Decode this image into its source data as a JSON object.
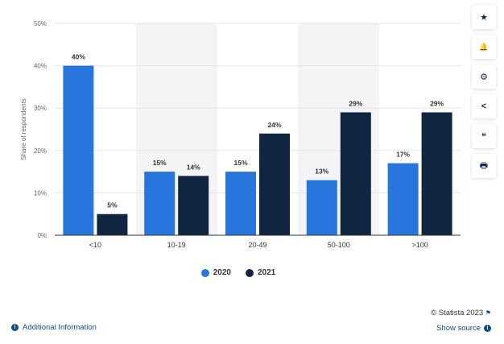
{
  "chart_data": {
    "type": "bar",
    "categories": [
      "<10",
      "10-19",
      "20-49",
      "50-100",
      ">100"
    ],
    "series": [
      {
        "name": "2020",
        "values": [
          40,
          15,
          15,
          13,
          17
        ],
        "color": "#2876dd"
      },
      {
        "name": "2021",
        "values": [
          5,
          14,
          24,
          29,
          29
        ],
        "color": "#10253f"
      }
    ],
    "ylabel": "Share of respondents",
    "yticks": [
      "0%",
      "10%",
      "20%",
      "30%",
      "40%",
      "50%"
    ],
    "ylim": [
      0,
      50
    ],
    "data_label_suffix": "%",
    "grid": true,
    "legend_position": "bottom"
  },
  "toolbar": {
    "favorite_icon": "★",
    "alert_icon": "🔔",
    "settings_icon": "⚙",
    "share_icon": "<",
    "cite_icon": "❝",
    "print_icon": "🖶"
  },
  "footer": {
    "credit": "© Statista 2023",
    "show_source": "Show source",
    "additional_info": "Additional Information",
    "info_glyph": "i"
  }
}
